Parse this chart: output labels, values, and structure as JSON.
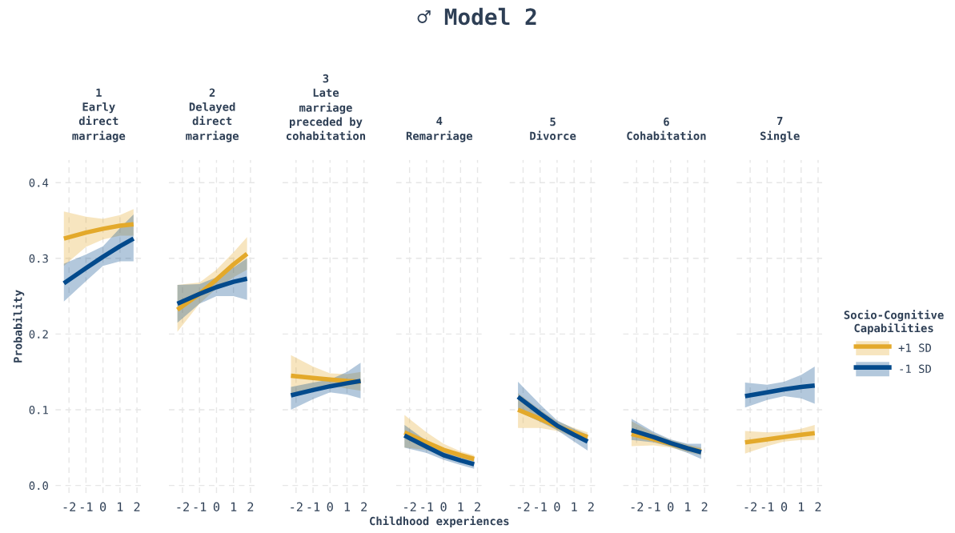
{
  "chart_data": [
    {
      "type": "line",
      "title": "1\nEarly\ndirect\nmarriage",
      "annotations": [
        "♂ Model 2"
      ],
      "ylabel": "Probability",
      "xlim": [
        -2.8,
        2.3
      ],
      "ylim": [
        -0.01,
        0.43
      ],
      "xticks": [
        -2,
        -1,
        0,
        1,
        2
      ],
      "yticks": [
        {
          "value": 0,
          "label": "0.0"
        },
        0.1,
        0.2,
        0.3,
        0.4
      ],
      "grid": true,
      "line_style": "solid",
      "x": [
        -2.3,
        -1,
        0,
        1,
        1.8
      ],
      "series": [
        {
          "color": "#e3a92b",
          "values": [
            0.326,
            0.334,
            0.339,
            0.343,
            0.345
          ],
          "lower": [
            0.29,
            0.315,
            0.325,
            0.33,
            0.33
          ],
          "upper": [
            0.362,
            0.355,
            0.352,
            0.357,
            0.365
          ]
        },
        {
          "color": "#034a8c",
          "values": [
            0.267,
            0.287,
            0.302,
            0.316,
            0.326
          ],
          "lower": [
            0.243,
            0.27,
            0.29,
            0.296,
            0.296
          ],
          "upper": [
            0.293,
            0.305,
            0.316,
            0.34,
            0.358
          ]
        }
      ]
    },
    {
      "type": "line",
      "title": "2\nDelayed\ndirect\nmarriage",
      "xlim": [
        -2.8,
        2.3
      ],
      "ylim": [
        -0.01,
        0.43
      ],
      "xticks": [
        -2,
        -1,
        0,
        1,
        2
      ],
      "yticks": [
        0,
        0.1,
        0.2,
        0.3,
        0.4
      ],
      "grid": true,
      "line_style": "solid",
      "tick_labels": "x",
      "x": [
        -2.3,
        -1,
        0,
        1,
        1.8
      ],
      "series": [
        {
          "color": "#e3a92b",
          "values": [
            0.232,
            0.253,
            0.272,
            0.292,
            0.306
          ],
          "lower": [
            0.203,
            0.24,
            0.26,
            0.275,
            0.285
          ],
          "upper": [
            0.265,
            0.268,
            0.285,
            0.308,
            0.328
          ]
        },
        {
          "color": "#034a8c",
          "values": [
            0.24,
            0.253,
            0.262,
            0.269,
            0.273
          ],
          "lower": [
            0.215,
            0.24,
            0.25,
            0.25,
            0.245
          ],
          "upper": [
            0.265,
            0.266,
            0.275,
            0.288,
            0.3
          ]
        }
      ]
    },
    {
      "type": "line",
      "title": "3\nLate\nmarriage\npreceded by\ncohabitation",
      "xlim": [
        -2.8,
        2.3
      ],
      "ylim": [
        -0.01,
        0.43
      ],
      "xticks": [
        -2,
        -1,
        0,
        1,
        2
      ],
      "yticks": [
        0,
        0.1,
        0.2,
        0.3,
        0.4
      ],
      "grid": true,
      "line_style": "solid",
      "tick_labels": "x",
      "x": [
        -2.3,
        -1,
        0,
        1,
        1.8
      ],
      "series": [
        {
          "color": "#e3a92b",
          "values": [
            0.145,
            0.142,
            0.14,
            0.138,
            0.137
          ],
          "lower": [
            0.118,
            0.128,
            0.132,
            0.128,
            0.125
          ],
          "upper": [
            0.172,
            0.157,
            0.148,
            0.147,
            0.15
          ]
        },
        {
          "color": "#034a8c",
          "values": [
            0.119,
            0.126,
            0.131,
            0.135,
            0.138
          ],
          "lower": [
            0.1,
            0.114,
            0.123,
            0.12,
            0.115
          ],
          "upper": [
            0.13,
            0.136,
            0.14,
            0.15,
            0.162
          ]
        }
      ]
    },
    {
      "type": "line",
      "title": "4\nRemarriage",
      "xlabel": "Childhood experiences",
      "xlim": [
        -2.8,
        2.3
      ],
      "ylim": [
        -0.01,
        0.43
      ],
      "xticks": [
        -2,
        -1,
        0,
        1,
        2
      ],
      "yticks": [
        0,
        0.1,
        0.2,
        0.3,
        0.4
      ],
      "grid": true,
      "line_style": "solid",
      "tick_labels": "x",
      "x": [
        -2.3,
        -1,
        0,
        1,
        1.8
      ],
      "series": [
        {
          "color": "#e3a92b",
          "values": [
            0.07,
            0.057,
            0.047,
            0.04,
            0.035
          ],
          "lower": [
            0.05,
            0.047,
            0.04,
            0.034,
            0.03
          ],
          "upper": [
            0.093,
            0.07,
            0.055,
            0.045,
            0.04
          ]
        },
        {
          "color": "#034a8c",
          "values": [
            0.066,
            0.051,
            0.04,
            0.033,
            0.028
          ],
          "lower": [
            0.05,
            0.043,
            0.034,
            0.027,
            0.022
          ],
          "upper": [
            0.08,
            0.059,
            0.046,
            0.039,
            0.035
          ]
        }
      ]
    },
    {
      "type": "line",
      "title": "5\nDivorce",
      "xlim": [
        -2.8,
        2.3
      ],
      "ylim": [
        -0.01,
        0.43
      ],
      "xticks": [
        -2,
        -1,
        0,
        1,
        2
      ],
      "yticks": [
        0,
        0.1,
        0.2,
        0.3,
        0.4
      ],
      "grid": true,
      "line_style": "solid",
      "tick_labels": "x",
      "x": [
        -2.3,
        -1,
        0,
        1,
        1.8
      ],
      "series": [
        {
          "color": "#e3a92b",
          "values": [
            0.1,
            0.088,
            0.078,
            0.07,
            0.064
          ],
          "lower": [
            0.076,
            0.076,
            0.072,
            0.064,
            0.058
          ],
          "upper": [
            0.122,
            0.1,
            0.085,
            0.076,
            0.07
          ]
        },
        {
          "color": "#034a8c",
          "values": [
            0.117,
            0.095,
            0.079,
            0.067,
            0.058
          ],
          "lower": [
            0.098,
            0.084,
            0.073,
            0.058,
            0.046
          ],
          "upper": [
            0.137,
            0.107,
            0.086,
            0.075,
            0.067
          ]
        }
      ]
    },
    {
      "type": "line",
      "title": "6\nCohabitation",
      "xlim": [
        -2.8,
        2.3
      ],
      "ylim": [
        -0.01,
        0.43
      ],
      "xticks": [
        -2,
        -1,
        0,
        1,
        2
      ],
      "yticks": [
        0,
        0.1,
        0.2,
        0.3,
        0.4
      ],
      "grid": true,
      "line_style": "solid",
      "tick_labels": "x",
      "x": [
        -2.3,
        -1,
        0,
        1,
        1.8
      ],
      "series": [
        {
          "color": "#e3a92b",
          "values": [
            0.068,
            0.061,
            0.055,
            0.049,
            0.045
          ],
          "lower": [
            0.052,
            0.053,
            0.05,
            0.044,
            0.04
          ],
          "upper": [
            0.085,
            0.069,
            0.06,
            0.054,
            0.05
          ]
        },
        {
          "color": "#034a8c",
          "values": [
            0.073,
            0.064,
            0.056,
            0.049,
            0.044
          ],
          "lower": [
            0.06,
            0.057,
            0.051,
            0.043,
            0.035
          ],
          "upper": [
            0.088,
            0.071,
            0.061,
            0.055,
            0.055
          ]
        }
      ]
    },
    {
      "type": "line",
      "title": "7\nSingle",
      "legend_title": "Socio-Cognitive\nCapabilities",
      "legend": "right",
      "xlim": [
        -2.8,
        2.3
      ],
      "ylim": [
        -0.01,
        0.43
      ],
      "xticks": [
        -2,
        -1,
        0,
        1,
        2
      ],
      "yticks": [
        0,
        0.1,
        0.2,
        0.3,
        0.4
      ],
      "grid": true,
      "line_style": "solid",
      "tick_labels": "x",
      "x": [
        -2.3,
        -1,
        0,
        1,
        1.8
      ],
      "series": [
        {
          "name": "+1 SD",
          "color": "#e3a92b",
          "values": [
            0.057,
            0.061,
            0.064,
            0.067,
            0.069
          ],
          "lower": [
            0.042,
            0.052,
            0.058,
            0.06,
            0.06
          ],
          "upper": [
            0.072,
            0.07,
            0.071,
            0.075,
            0.08
          ]
        },
        {
          "name": "-1 SD",
          "color": "#034a8c",
          "values": [
            0.118,
            0.123,
            0.127,
            0.13,
            0.132
          ],
          "lower": [
            0.103,
            0.113,
            0.118,
            0.115,
            0.108
          ],
          "upper": [
            0.136,
            0.133,
            0.137,
            0.146,
            0.157
          ]
        }
      ]
    }
  ]
}
